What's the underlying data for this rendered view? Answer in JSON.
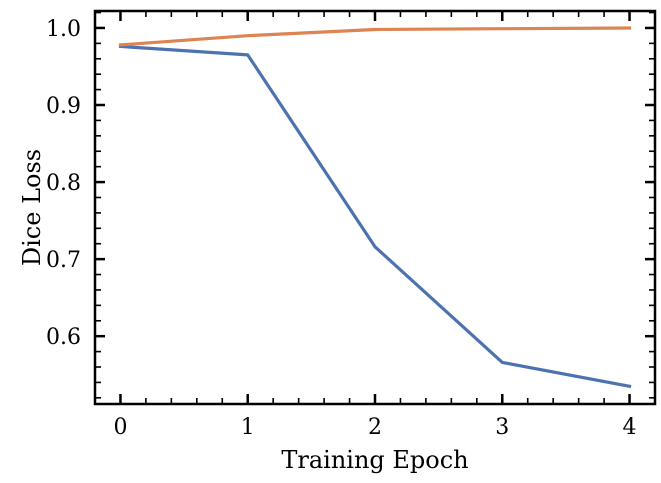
{
  "chart_data": {
    "type": "line",
    "title": "",
    "xlabel": "Training Epoch",
    "ylabel": "Dice Loss",
    "x": [
      0,
      1,
      2,
      3,
      4
    ],
    "xlim": [
      -0.2,
      4.2
    ],
    "ylim": [
      0.512,
      1.022
    ],
    "xticks": [
      0,
      1,
      2,
      3,
      4
    ],
    "xtick_labels": [
      "0",
      "1",
      "2",
      "3",
      "4"
    ],
    "yticks": [
      0.6,
      0.7,
      0.8,
      0.9,
      1.0
    ],
    "ytick_labels": [
      "0.6",
      "0.7",
      "0.8",
      "0.9",
      "1.0"
    ],
    "series": [
      {
        "values": [
          0.976,
          0.965,
          0.716,
          0.566,
          0.535
        ],
        "color": "#4c72b0"
      },
      {
        "values": [
          0.978,
          0.99,
          0.998,
          0.999,
          1.0
        ],
        "color": "#dd8452"
      }
    ],
    "grid": false,
    "legend": "none"
  }
}
